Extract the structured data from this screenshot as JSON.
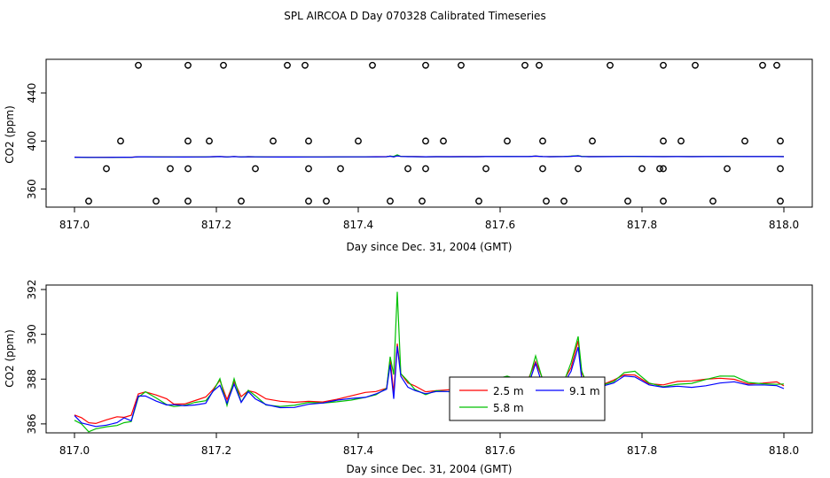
{
  "figure_title": "SPL AIRCOA D  Day 070328  Calibrated Timeseries",
  "chart_data": [
    {
      "type": "scatter+line",
      "xlabel": "Day since Dec. 31, 2004 (GMT)",
      "ylabel": "CO2 (ppm)",
      "xlim": [
        816.96,
        818.04
      ],
      "ylim": [
        345,
        468
      ],
      "xticks": [
        817.0,
        817.2,
        817.4,
        817.6,
        817.8,
        818.0
      ],
      "xtick_labels": [
        "817.0",
        "817.2",
        "817.4",
        "817.6",
        "817.8",
        "818.0"
      ],
      "yticks": [
        360,
        400,
        440
      ],
      "ytick_labels": [
        "360",
        "400",
        "440"
      ],
      "open_circle_points": {
        "x_at_463": [
          817.09,
          817.16,
          817.21,
          817.3,
          817.325,
          817.42,
          817.495,
          817.545,
          817.635,
          817.655,
          817.755,
          817.83,
          817.875,
          817.97,
          817.99
        ],
        "x_at_400": [
          817.065,
          817.16,
          817.19,
          817.28,
          817.33,
          817.4,
          817.495,
          817.52,
          817.61,
          817.66,
          817.73,
          817.83,
          817.855,
          817.945,
          817.995
        ],
        "x_at_377": [
          817.045,
          817.135,
          817.16,
          817.255,
          817.33,
          817.375,
          817.47,
          817.495,
          817.58,
          817.66,
          817.71,
          817.8,
          817.825,
          817.83,
          817.92,
          817.995
        ],
        "x_at_350": [
          817.02,
          817.115,
          817.16,
          817.235,
          817.33,
          817.355,
          817.445,
          817.49,
          817.57,
          817.665,
          817.69,
          817.78,
          817.83,
          817.9,
          817.995
        ]
      },
      "series_colors": {
        "2.5 m": "#ff0000",
        "5.8 m": "#00c000",
        "9.1 m": "#0000ff"
      }
    },
    {
      "type": "line",
      "xlabel": "Day since Dec. 31, 2004 (GMT)",
      "ylabel": "CO2 (ppm)",
      "xlim": [
        816.96,
        818.04
      ],
      "ylim": [
        385.6,
        392.2
      ],
      "xticks": [
        817.0,
        817.2,
        817.4,
        817.6,
        817.8,
        818.0
      ],
      "xtick_labels": [
        "817.0",
        "817.2",
        "817.4",
        "817.6",
        "817.8",
        "818.0"
      ],
      "yticks": [
        386,
        388,
        390,
        392
      ],
      "ytick_labels": [
        "386",
        "388",
        "390",
        "392"
      ],
      "series": [
        {
          "name": "2.5 m",
          "color": "#ff0000"
        },
        {
          "name": "5.8 m",
          "color": "#00c000"
        },
        {
          "name": "9.1 m",
          "color": "#0000ff"
        }
      ],
      "base_curve": [
        [
          817.0,
          386.4
        ],
        [
          817.01,
          386.2
        ],
        [
          817.02,
          386.0
        ],
        [
          817.03,
          386.0
        ],
        [
          817.045,
          386.1
        ],
        [
          817.06,
          386.2
        ],
        [
          817.07,
          386.3
        ],
        [
          817.08,
          386.3
        ],
        [
          817.09,
          387.3
        ],
        [
          817.1,
          387.4
        ],
        [
          817.115,
          387.2
        ],
        [
          817.13,
          387.0
        ],
        [
          817.14,
          386.9
        ],
        [
          817.155,
          386.9
        ],
        [
          817.17,
          387.0
        ],
        [
          817.185,
          387.1
        ],
        [
          817.195,
          387.5
        ],
        [
          817.205,
          387.9
        ],
        [
          817.215,
          387.0
        ],
        [
          817.225,
          387.9
        ],
        [
          817.235,
          387.1
        ],
        [
          817.245,
          387.5
        ],
        [
          817.255,
          387.3
        ],
        [
          817.27,
          387.0
        ],
        [
          817.29,
          386.9
        ],
        [
          817.31,
          386.9
        ],
        [
          817.33,
          387.0
        ],
        [
          817.35,
          387.0
        ],
        [
          817.37,
          387.1
        ],
        [
          817.39,
          387.2
        ],
        [
          817.41,
          387.3
        ],
        [
          817.425,
          387.4
        ],
        [
          817.44,
          387.6
        ],
        [
          817.445,
          388.8
        ],
        [
          817.45,
          387.3
        ],
        [
          817.455,
          389.6
        ],
        [
          817.46,
          388.2
        ],
        [
          817.47,
          387.8
        ],
        [
          817.48,
          387.6
        ],
        [
          817.495,
          387.4
        ],
        [
          817.51,
          387.5
        ],
        [
          817.53,
          387.5
        ],
        [
          817.55,
          387.6
        ],
        [
          817.565,
          387.6
        ],
        [
          817.58,
          387.8
        ],
        [
          817.595,
          387.9
        ],
        [
          817.61,
          388.0
        ],
        [
          817.625,
          387.9
        ],
        [
          817.64,
          387.9
        ],
        [
          817.65,
          388.8
        ],
        [
          817.66,
          387.9
        ],
        [
          817.67,
          387.6
        ],
        [
          817.68,
          387.7
        ],
        [
          817.69,
          387.9
        ],
        [
          817.7,
          388.5
        ],
        [
          817.71,
          389.6
        ],
        [
          817.715,
          388.2
        ],
        [
          817.725,
          387.6
        ],
        [
          817.74,
          387.7
        ],
        [
          817.76,
          387.9
        ],
        [
          817.775,
          388.2
        ],
        [
          817.79,
          388.2
        ],
        [
          817.81,
          387.8
        ],
        [
          817.83,
          387.7
        ],
        [
          817.85,
          387.8
        ],
        [
          817.87,
          387.8
        ],
        [
          817.89,
          387.9
        ],
        [
          817.91,
          388.0
        ],
        [
          817.93,
          388.0
        ],
        [
          817.95,
          387.8
        ],
        [
          817.97,
          387.8
        ],
        [
          817.99,
          387.8
        ],
        [
          818.0,
          387.7
        ]
      ],
      "legend": {
        "position": "center-right-bottom"
      }
    }
  ]
}
